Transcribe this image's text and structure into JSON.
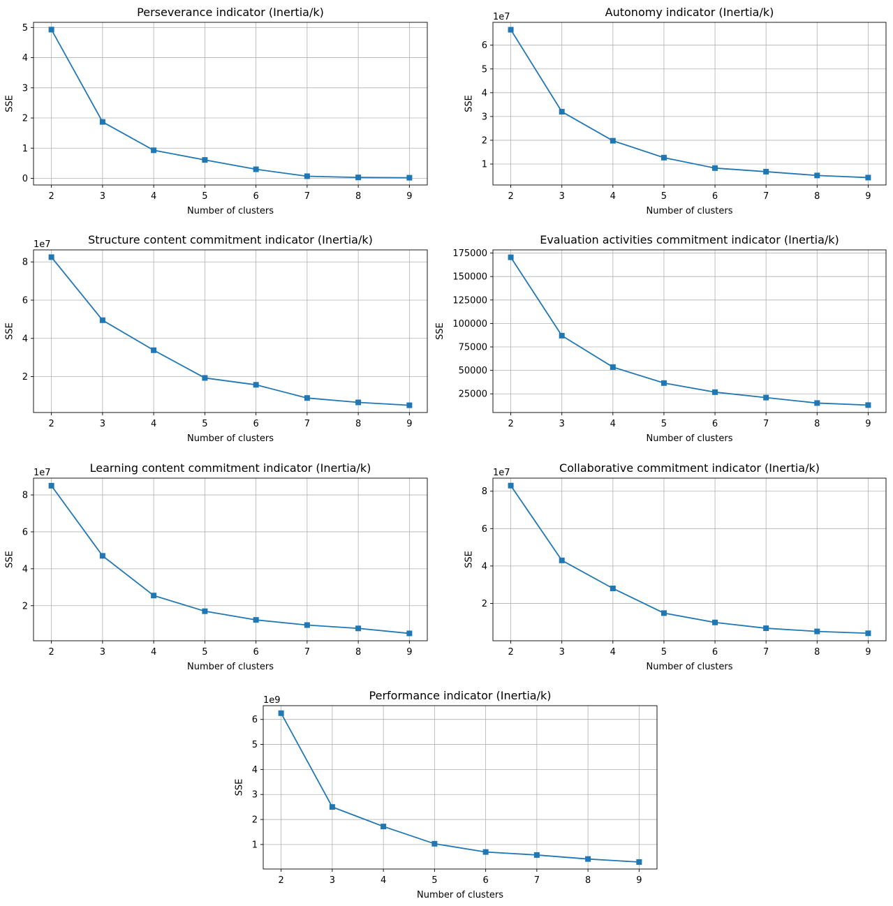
{
  "colors": {
    "series": "#1f77b4",
    "grid": "#b0b0b0",
    "axes": "#000000",
    "background": "#ffffff"
  },
  "chart_data": [
    {
      "type": "line",
      "title": "Perseverance indicator (Inertia/k)",
      "xlabel": "Number of clusters",
      "ylabel": "SSE",
      "offset": "",
      "marker": "square",
      "grid": true,
      "x": [
        2,
        3,
        4,
        5,
        6,
        7,
        8,
        9
      ],
      "y": [
        4.93,
        1.87,
        0.93,
        0.61,
        0.3,
        0.07,
        0.03,
        0.02
      ],
      "xlim": [
        1.65,
        9.35
      ],
      "ylim": [
        -0.22,
        5.17
      ],
      "yticks": [
        0,
        1,
        2,
        3,
        4,
        5
      ],
      "ytick_labels": [
        "0",
        "1",
        "2",
        "3",
        "4",
        "5"
      ]
    },
    {
      "type": "line",
      "title": "Autonomy indicator (Inertia/k)",
      "xlabel": "Number of clusters",
      "ylabel": "SSE",
      "offset": "1e7",
      "marker": "square",
      "grid": true,
      "x": [
        2,
        3,
        4,
        5,
        6,
        7,
        8,
        9
      ],
      "y": [
        6.65,
        3.2,
        1.98,
        1.27,
        0.83,
        0.68,
        0.52,
        0.43
      ],
      "xlim": [
        1.65,
        9.35
      ],
      "ylim": [
        0.12,
        6.96
      ],
      "yticks": [
        1,
        2,
        3,
        4,
        5,
        6
      ],
      "ytick_labels": [
        "1",
        "2",
        "3",
        "4",
        "5",
        "6"
      ]
    },
    {
      "type": "line",
      "title": "Structure content commitment indicator (Inertia/k)",
      "xlabel": "Number of clusters",
      "ylabel": "SSE",
      "offset": "1e7",
      "marker": "square",
      "grid": true,
      "x": [
        2,
        3,
        4,
        5,
        6,
        7,
        8,
        9
      ],
      "y": [
        8.25,
        4.95,
        3.38,
        1.93,
        1.57,
        0.88,
        0.65,
        0.5
      ],
      "xlim": [
        1.65,
        9.35
      ],
      "ylim": [
        0.12,
        8.63
      ],
      "yticks": [
        2,
        4,
        6,
        8
      ],
      "ytick_labels": [
        "2",
        "4",
        "6",
        "8"
      ]
    },
    {
      "type": "line",
      "title": "Evaluation activities commitment indicator (Inertia/k)",
      "xlabel": "Number of clusters",
      "ylabel": "SSE",
      "offset": "",
      "marker": "square",
      "grid": true,
      "x": [
        2,
        3,
        4,
        5,
        6,
        7,
        8,
        9
      ],
      "y": [
        170500,
        87000,
        53500,
        36500,
        26800,
        21000,
        15200,
        13000
      ],
      "xlim": [
        1.65,
        9.35
      ],
      "ylim": [
        5100,
        178400
      ],
      "yticks": [
        25000,
        50000,
        75000,
        100000,
        125000,
        150000,
        175000
      ],
      "ytick_labels": [
        "25000",
        "50000",
        "75000",
        "100000",
        "125000",
        "150000",
        "175000"
      ]
    },
    {
      "type": "line",
      "title": "Learning content commitment indicator (Inertia/k)",
      "xlabel": "Number of clusters",
      "ylabel": "SSE",
      "offset": "1e7",
      "marker": "square",
      "grid": true,
      "x": [
        2,
        3,
        4,
        5,
        6,
        7,
        8,
        9
      ],
      "y": [
        8.5,
        4.7,
        2.55,
        1.7,
        1.23,
        0.95,
        0.77,
        0.5
      ],
      "xlim": [
        1.65,
        9.35
      ],
      "ylim": [
        0.1,
        8.91
      ],
      "yticks": [
        2,
        4,
        6,
        8
      ],
      "ytick_labels": [
        "2",
        "4",
        "6",
        "8"
      ]
    },
    {
      "type": "line",
      "title": "Collaborative commitment indicator (Inertia/k)",
      "xlabel": "Number of clusters",
      "ylabel": "SSE",
      "offset": "1e7",
      "marker": "square",
      "grid": true,
      "x": [
        2,
        3,
        4,
        5,
        6,
        7,
        8,
        9
      ],
      "y": [
        8.3,
        4.3,
        2.8,
        1.48,
        0.98,
        0.67,
        0.5,
        0.4
      ],
      "xlim": [
        1.65,
        9.35
      ],
      "ylim": [
        0.0,
        8.7
      ],
      "yticks": [
        2,
        4,
        6,
        8
      ],
      "ytick_labels": [
        "2",
        "4",
        "6",
        "8"
      ]
    },
    {
      "type": "line",
      "title": "Performance indicator (Inertia/k)",
      "xlabel": "Number of clusters",
      "ylabel": "SSE",
      "offset": "1e9",
      "marker": "square",
      "grid": true,
      "x": [
        2,
        3,
        4,
        5,
        6,
        7,
        8,
        9
      ],
      "y": [
        6.25,
        2.5,
        1.72,
        1.03,
        0.7,
        0.58,
        0.42,
        0.3
      ],
      "xlim": [
        1.65,
        9.35
      ],
      "ylim": [
        0.02,
        6.55
      ],
      "yticks": [
        1,
        2,
        3,
        4,
        5,
        6
      ],
      "ytick_labels": [
        "1",
        "2",
        "3",
        "4",
        "5",
        "6"
      ]
    }
  ]
}
